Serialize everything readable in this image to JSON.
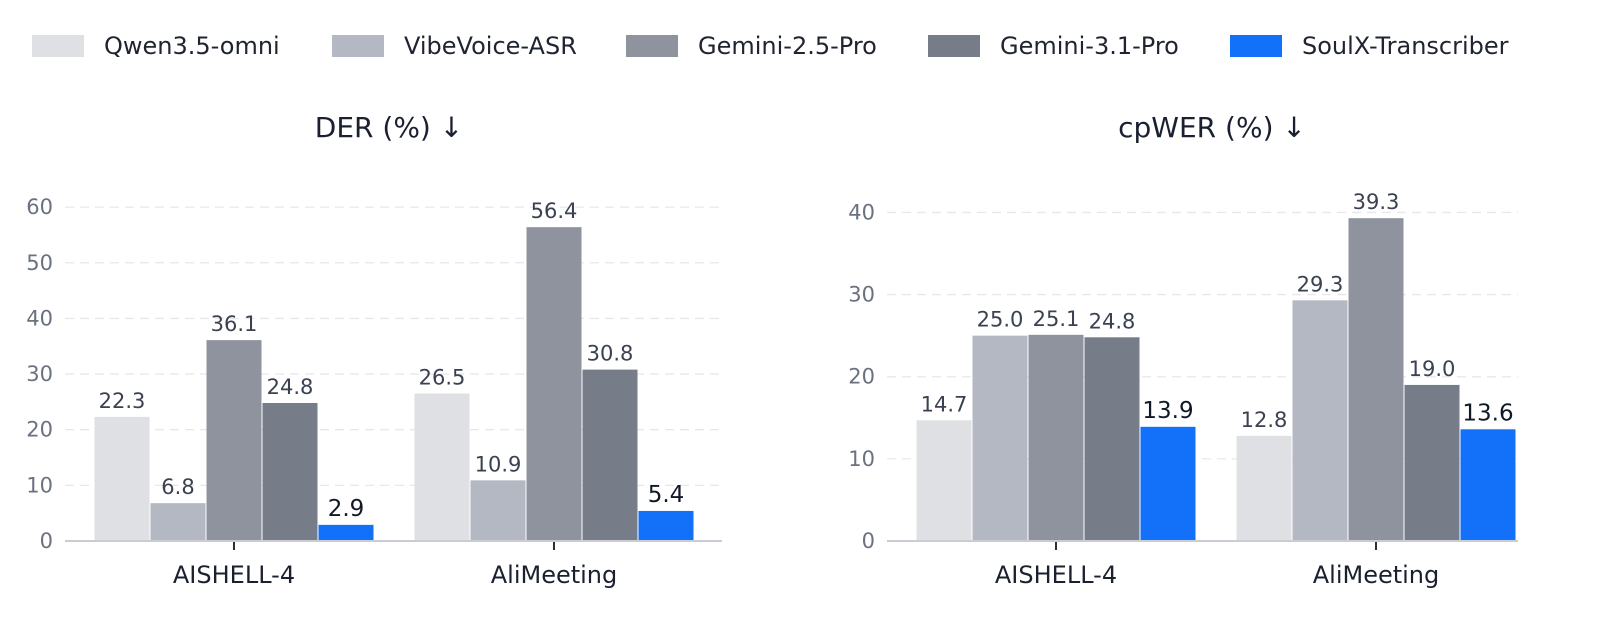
{
  "legend": [
    {
      "label": "Qwen3.5-omni",
      "color": "#dfe0e4"
    },
    {
      "label": "VibeVoice-ASR",
      "color": "#b3b8c2"
    },
    {
      "label": "Gemini-2.5-Pro",
      "color": "#8e939e"
    },
    {
      "label": "Gemini-3.1-Pro",
      "color": "#767c88"
    },
    {
      "label": "SoulX-Transcriber",
      "color": "#1271f8"
    }
  ],
  "chart_data": [
    {
      "type": "bar",
      "title": "DER (%)  ↓",
      "categories": [
        "AISHELL-4",
        "AliMeeting"
      ],
      "series": [
        {
          "name": "Qwen3.5-omni",
          "values": [
            22.3,
            26.5
          ],
          "labels": [
            "22.3",
            "26.5"
          ]
        },
        {
          "name": "VibeVoice-ASR",
          "values": [
            6.8,
            10.9
          ],
          "labels": [
            "6.8",
            "10.9"
          ]
        },
        {
          "name": "Gemini-2.5-Pro",
          "values": [
            36.1,
            56.4
          ],
          "labels": [
            "36.1",
            "56.4"
          ]
        },
        {
          "name": "Gemini-3.1-Pro",
          "values": [
            24.8,
            30.8
          ],
          "labels": [
            "24.8",
            "30.8"
          ]
        },
        {
          "name": "SoulX-Transcriber",
          "values": [
            2.9,
            5.4
          ],
          "labels": [
            "2.9",
            "5.4"
          ]
        }
      ],
      "yticks": [
        0,
        10,
        20,
        30,
        40,
        50,
        60
      ],
      "ylim": [
        0,
        62
      ],
      "grid": true
    },
    {
      "type": "bar",
      "title": "cpWER (%)  ↓",
      "categories": [
        "AISHELL-4",
        "AliMeeting"
      ],
      "series": [
        {
          "name": "Qwen3.5-omni",
          "values": [
            14.7,
            12.8
          ],
          "labels": [
            "14.7",
            "12.8"
          ]
        },
        {
          "name": "VibeVoice-ASR",
          "values": [
            25.0,
            29.3
          ],
          "labels": [
            "25.0",
            "29.3"
          ]
        },
        {
          "name": "Gemini-2.5-Pro",
          "values": [
            25.1,
            39.3
          ],
          "labels": [
            "25.1",
            "39.3"
          ]
        },
        {
          "name": "Gemini-3.1-Pro",
          "values": [
            24.8,
            19.0
          ],
          "labels": [
            "24.8",
            "19.0"
          ]
        },
        {
          "name": "SoulX-Transcriber",
          "values": [
            13.9,
            13.6
          ],
          "labels": [
            "13.9",
            "13.6"
          ]
        }
      ],
      "yticks": [
        0,
        10,
        20,
        30,
        40
      ],
      "ylim": [
        0,
        42
      ],
      "grid": true
    }
  ]
}
